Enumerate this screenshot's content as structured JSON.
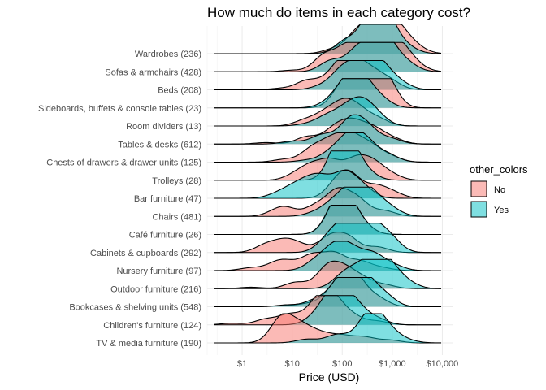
{
  "chart_data": {
    "type": "ridgeline",
    "title": "How much do items in each category cost?",
    "xlabel": "Price (USD)",
    "ylabel": "",
    "x_scale": "log10",
    "xlim": [
      0.2,
      16000
    ],
    "x_ticks": [
      1,
      10,
      100,
      1000,
      10000
    ],
    "x_tick_labels": [
      "$1",
      "$10",
      "$100",
      "$1,000",
      "$10,000"
    ],
    "grid": true,
    "legend": {
      "title": "other_colors",
      "position": "right",
      "entries": [
        {
          "label": "No",
          "color": "#F8766D"
        },
        {
          "label": "Yes",
          "color": "#00BFC4"
        }
      ]
    },
    "categories": [
      "TV & media furniture (190)",
      "Children's furniture (124)",
      "Bookcases & shelving units (548)",
      "Outdoor furniture (216)",
      "Nursery furniture (97)",
      "Cabinets & cupboards (292)",
      "Café furniture (26)",
      "Chairs (481)",
      "Bar furniture (47)",
      "Trolleys (28)",
      "Chests of drawers & drawer units (125)",
      "Tables & desks (612)",
      "Room dividers (13)",
      "Sideboards, buffets & console tables (23)",
      "Beds (208)",
      "Sofas & armchairs (428)",
      "Wardrobes (236)"
    ],
    "series": [
      {
        "name": "No",
        "densities": [
          [
            [
              5.5,
              0.6
            ],
            [
              7,
              0.85
            ],
            [
              13,
              0.3
            ],
            [
              18,
              0.55
            ],
            [
              40,
              0.4
            ],
            [
              100,
              0.35
            ],
            [
              280,
              0.3
            ],
            [
              900,
              0.15
            ]
          ],
          [
            [
              0.6,
              0.08
            ],
            [
              3,
              0.3
            ],
            [
              9,
              0.55
            ],
            [
              30,
              1.0
            ],
            [
              60,
              1.45
            ],
            [
              150,
              0.5
            ],
            [
              500,
              0.2
            ]
          ],
          [
            [
              6,
              0.05
            ],
            [
              20,
              0.15
            ],
            [
              60,
              0.6
            ],
            [
              120,
              1.3
            ],
            [
              200,
              1.0
            ],
            [
              500,
              0.45
            ]
          ],
          [
            [
              1.5,
              0.08
            ],
            [
              12,
              0.35
            ],
            [
              50,
              1.1
            ],
            [
              110,
              0.9
            ],
            [
              250,
              0.5
            ],
            [
              700,
              0.2
            ]
          ],
          [
            [
              1.5,
              0.15
            ],
            [
              5,
              0.4
            ],
            [
              9,
              0.3
            ],
            [
              25,
              0.8
            ],
            [
              70,
              0.9
            ],
            [
              220,
              0.5
            ],
            [
              600,
              0.15
            ]
          ],
          [
            [
              3,
              0.4
            ],
            [
              7,
              0.55
            ],
            [
              14,
              0.35
            ],
            [
              55,
              0.8
            ],
            [
              130,
              0.8
            ],
            [
              500,
              0.3
            ]
          ],
          [
            [
              60,
              0.4
            ],
            [
              90,
              1.3
            ],
            [
              130,
              1.0
            ],
            [
              250,
              0.45
            ]
          ],
          [
            [
              5,
              0.25
            ],
            [
              8,
              0.35
            ],
            [
              30,
              0.55
            ],
            [
              80,
              1.3
            ],
            [
              200,
              0.9
            ],
            [
              700,
              0.3
            ]
          ],
          [
            [
              80,
              0.8
            ],
            [
              150,
              1.05
            ],
            [
              450,
              0.6
            ],
            [
              1000,
              0.3
            ]
          ],
          [
            [
              12,
              0.3
            ],
            [
              25,
              0.7
            ],
            [
              60,
              0.95
            ],
            [
              180,
              1.0
            ],
            [
              400,
              0.85
            ],
            [
              900,
              0.3
            ]
          ],
          [
            [
              7,
              0.15
            ],
            [
              25,
              0.7
            ],
            [
              60,
              1.0
            ],
            [
              140,
              1.3
            ],
            [
              350,
              0.85
            ],
            [
              900,
              0.3
            ]
          ],
          [
            [
              3,
              0.08
            ],
            [
              20,
              0.4
            ],
            [
              70,
              0.8
            ],
            [
              160,
              1.05
            ],
            [
              400,
              0.8
            ],
            [
              1000,
              0.3
            ]
          ],
          [
            [
              18,
              0.3
            ],
            [
              45,
              0.6
            ],
            [
              100,
              1.0
            ],
            [
              200,
              0.8
            ],
            [
              500,
              0.4
            ]
          ],
          [
            [
              90,
              0.6
            ],
            [
              150,
              1.3
            ],
            [
              280,
              0.55
            ],
            [
              600,
              1.45
            ],
            [
              900,
              0.6
            ]
          ],
          [
            [
              6,
              0.08
            ],
            [
              20,
              0.5
            ],
            [
              60,
              0.6
            ],
            [
              120,
              1.35
            ],
            [
              200,
              0.75
            ],
            [
              400,
              0.8
            ],
            [
              900,
              0.45
            ]
          ],
          [
            [
              10,
              0.08
            ],
            [
              45,
              0.9
            ],
            [
              130,
              1.35
            ],
            [
              350,
              1.15
            ],
            [
              700,
              1.55
            ],
            [
              1500,
              1.1
            ],
            [
              3000,
              0.3
            ]
          ],
          [
            [
              70,
              0.25
            ],
            [
              200,
              1.05
            ],
            [
              450,
              1.25
            ],
            [
              800,
              1.3
            ],
            [
              1500,
              0.85
            ],
            [
              3000,
              0.3
            ]
          ]
        ]
      },
      {
        "name": "Yes",
        "densities": [
          [
            [
              20,
              0.2
            ],
            [
              80,
              0.45
            ],
            [
              300,
              1.0
            ],
            [
              500,
              1.1
            ],
            [
              1000,
              0.4
            ],
            [
              2000,
              0.1
            ]
          ],
          [
            [
              30,
              0.4
            ],
            [
              60,
              1.15
            ],
            [
              100,
              1.25
            ],
            [
              200,
              0.8
            ],
            [
              500,
              0.3
            ]
          ],
          [
            [
              8,
              0.1
            ],
            [
              30,
              0.35
            ],
            [
              80,
              0.9
            ],
            [
              150,
              1.45
            ],
            [
              300,
              1.2
            ],
            [
              700,
              0.6
            ]
          ],
          [
            [
              100,
              0.6
            ],
            [
              200,
              0.8
            ],
            [
              450,
              1.45
            ],
            [
              900,
              1.0
            ],
            [
              2000,
              0.3
            ]
          ],
          [
            [
              30,
              0.5
            ],
            [
              70,
              1.15
            ],
            [
              150,
              1.0
            ],
            [
              400,
              0.85
            ],
            [
              1000,
              0.3
            ]
          ],
          [
            [
              50,
              0.6
            ],
            [
              100,
              1.15
            ],
            [
              180,
              0.8
            ],
            [
              400,
              1.35
            ],
            [
              900,
              0.75
            ]
          ],
          [
            [
              60,
              0.45
            ],
            [
              90,
              1.3
            ],
            [
              130,
              1.0
            ],
            [
              250,
              0.45
            ]
          ],
          [
            [
              30,
              0.2
            ],
            [
              70,
              0.7
            ],
            [
              150,
              1.05
            ],
            [
              250,
              1.1
            ],
            [
              500,
              0.7
            ],
            [
              1000,
              0.3
            ]
          ],
          [
            [
              5,
              0.2
            ],
            [
              10,
              0.45
            ],
            [
              20,
              0.7
            ],
            [
              40,
              0.9
            ],
            [
              110,
              1.25
            ],
            [
              250,
              0.6
            ]
          ],
          [
            [
              80,
              1.0
            ],
            [
              110,
              1.35
            ],
            [
              150,
              0.8
            ],
            [
              300,
              0.4
            ]
          ],
          [
            [
              20,
              0.1
            ],
            [
              60,
              0.5
            ],
            [
              140,
              1.3
            ],
            [
              300,
              1.0
            ],
            [
              800,
              0.4
            ]
          ],
          [
            [
              10,
              0.15
            ],
            [
              40,
              0.5
            ],
            [
              140,
              1.2
            ],
            [
              300,
              0.9
            ],
            [
              900,
              0.3
            ]
          ],
          [
            [
              20,
              0.1
            ],
            [
              50,
              0.5
            ],
            [
              120,
              0.8
            ],
            [
              250,
              1.1
            ],
            [
              500,
              0.5
            ]
          ],
          [
            [
              50,
              0.2
            ],
            [
              100,
              0.8
            ],
            [
              180,
              1.25
            ],
            [
              300,
              0.8
            ],
            [
              600,
              0.4
            ]
          ],
          [
            [
              40,
              0.2
            ],
            [
              100,
              1.0
            ],
            [
              200,
              0.7
            ],
            [
              350,
              1.45
            ],
            [
              700,
              0.85
            ],
            [
              1500,
              0.3
            ]
          ],
          [
            [
              60,
              0.6
            ],
            [
              200,
              1.15
            ],
            [
              500,
              1.55
            ],
            [
              900,
              1.0
            ],
            [
              2000,
              0.4
            ]
          ],
          [
            [
              120,
              0.7
            ],
            [
              350,
              1.35
            ],
            [
              550,
              1.5
            ],
            [
              900,
              1.0
            ],
            [
              2000,
              0.3
            ]
          ]
        ]
      }
    ]
  }
}
